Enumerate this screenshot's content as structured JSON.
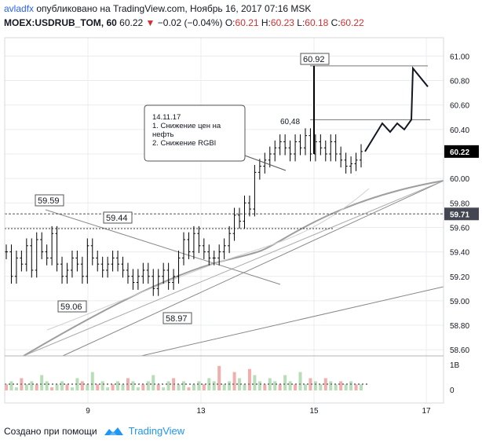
{
  "header": {
    "author": "avladfx",
    "published": "опубликовано на TradingView.com, Ноябрь 16, 2017 07:16 MSK",
    "symbol": "MOEX:USDRUB_TOM, 60",
    "last": "60.22",
    "arrow": "▼",
    "change": "−0.02 (−0.04%)",
    "o_label": "O:",
    "o": "60.21",
    "h_label": "H:",
    "h": "60.23",
    "l_label": "L:",
    "l": "60.18",
    "c_label": "C:",
    "c": "60.22"
  },
  "footer": {
    "created": "Создано при помощи",
    "brand": "TradingView"
  },
  "colors": {
    "price_tag": "#000000",
    "level_tag": "#434651",
    "grid": "#e9ecf1",
    "volume_up": "#a5d6a7",
    "volume_down": "#ef9a9a"
  },
  "chart_data": {
    "type": "line",
    "title": "",
    "x_ticks": [
      "9",
      "13",
      "15",
      "17"
    ],
    "y_ticks": [
      "61.00",
      "60.80",
      "60.60",
      "60.40",
      "60.20",
      "60.00",
      "59.80",
      "59.60",
      "59.40",
      "59.20",
      "59.00",
      "58.80",
      "58.60"
    ],
    "ylim": [
      58.55,
      61.15
    ],
    "current_price": "60.22",
    "level_price": "59.71",
    "volume_ticks": [
      "1B",
      "0"
    ],
    "annotations": {
      "high_label": "60.92",
      "mid_label": "60,48",
      "swing_high": "59.59",
      "swing_high2": "59.44",
      "swing_low": "59.06",
      "swing_low2": "58.97",
      "note": [
        "14.11.17",
        "1. Снижение цен на",
        "нефть",
        "2. Снижение RGBI"
      ]
    },
    "series": [
      {
        "values": [
          59.4,
          59.2,
          59.35,
          59.3,
          59.45,
          59.25,
          59.5,
          59.4,
          59.35,
          59.55,
          59.3,
          59.2,
          59.25,
          59.35,
          59.3,
          59.2,
          59.45,
          59.35,
          59.3,
          59.25,
          59.3,
          59.35,
          59.3,
          59.25,
          59.2,
          59.15,
          59.2,
          59.25,
          59.2,
          59.1,
          59.2,
          59.25,
          59.15,
          59.2,
          59.35,
          59.5,
          59.4,
          59.55,
          59.45,
          59.4,
          59.35,
          59.35,
          59.4,
          59.45,
          59.55,
          59.7,
          59.65,
          59.8,
          59.75,
          60.05,
          60.1,
          60.15,
          60.2,
          60.25,
          60.3,
          60.25,
          60.2,
          60.3,
          60.25,
          60.35,
          60.2,
          60.3,
          60.25,
          60.2,
          60.3,
          60.2,
          60.15,
          60.1,
          60.12,
          60.15,
          60.22
        ]
      },
      {
        "name": "",
        "values": [
          60.22,
          60.45,
          60.38,
          60.45,
          60.4,
          60.48,
          60.9,
          60.75
        ]
      }
    ],
    "volume": [
      0.2,
      0.3,
      0.1,
      0.4,
      0.2,
      0.3,
      0.2,
      0.5,
      0.3,
      0.1,
      0.2,
      0.3,
      0.2,
      0.1,
      0.4,
      0.3,
      0.2,
      0.6,
      0.2,
      0.3,
      0.1,
      0.2,
      0.3,
      0.2,
      0.4,
      0.3,
      0.1,
      0.2,
      0.3,
      0.5,
      0.2,
      0.1,
      0.3,
      0.4,
      0.2,
      0.3,
      0.1,
      0.2,
      0.3,
      0.2,
      0.4,
      0.3,
      0.8,
      0.2,
      0.3,
      0.6,
      0.4,
      0.2,
      0.7,
      0.5,
      0.3,
      0.2,
      0.4,
      0.3,
      0.2,
      0.5,
      0.3,
      0.2,
      0.6,
      0.2,
      0.4,
      0.3,
      0.2,
      0.4,
      0.3,
      0.2,
      0.3,
      0.2,
      0.3,
      0.2,
      0.2
    ]
  }
}
